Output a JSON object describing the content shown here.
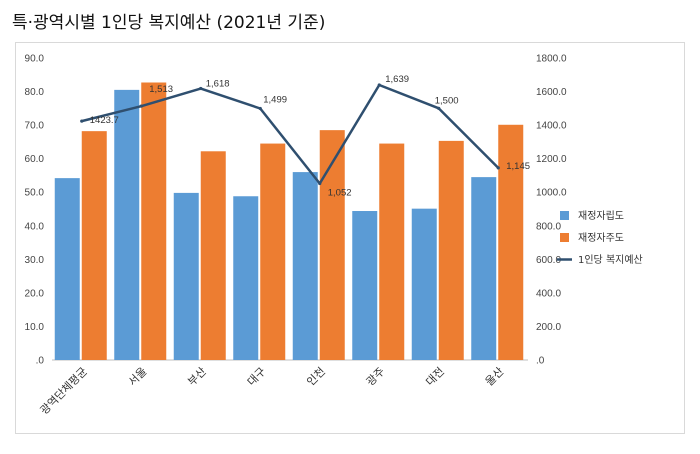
{
  "title": "특·광역시별 1인당 복지예산 (2021년 기준)",
  "chart_data": {
    "type": "bar",
    "categories": [
      "광역단체평균",
      "서울",
      "부산",
      "대구",
      "인천",
      "광주",
      "대전",
      "울산"
    ],
    "series": [
      {
        "name": "재정자립도",
        "type": "bar",
        "axis": "left",
        "color": "#5b9bd5",
        "values": [
          54.2,
          80.5,
          49.8,
          48.8,
          56.0,
          44.4,
          45.1,
          54.5
        ]
      },
      {
        "name": "재정자주도",
        "type": "bar",
        "axis": "left",
        "color": "#ed7d31",
        "values": [
          68.2,
          82.7,
          62.2,
          64.5,
          68.5,
          64.5,
          65.3,
          70.1
        ]
      },
      {
        "name": "1인당 복지예산",
        "type": "line",
        "axis": "right",
        "color": "#2f4f6f",
        "values": [
          1423.7,
          1513,
          1618,
          1499,
          1052,
          1639,
          1500,
          1145
        ],
        "labels": [
          "1423.7",
          "1,513",
          "1,618",
          "1,499",
          "1,052",
          "1,639",
          "1,500",
          "1,145"
        ]
      }
    ],
    "yleft": {
      "range": [
        0,
        90
      ],
      "ticks": [
        "90.0",
        "80.0",
        "70.0",
        "60.0",
        "50.0",
        "40.0",
        "30.0",
        "20.0",
        "10.0",
        ".0"
      ]
    },
    "yright": {
      "range": [
        0,
        1800
      ],
      "ticks": [
        "1800.0",
        "1600.0",
        "1400.0",
        "1200.0",
        "1000.0",
        "800.0",
        "600.0",
        "400.0",
        "200.0",
        ".0"
      ]
    },
    "grid": false,
    "legend_position": "right"
  }
}
